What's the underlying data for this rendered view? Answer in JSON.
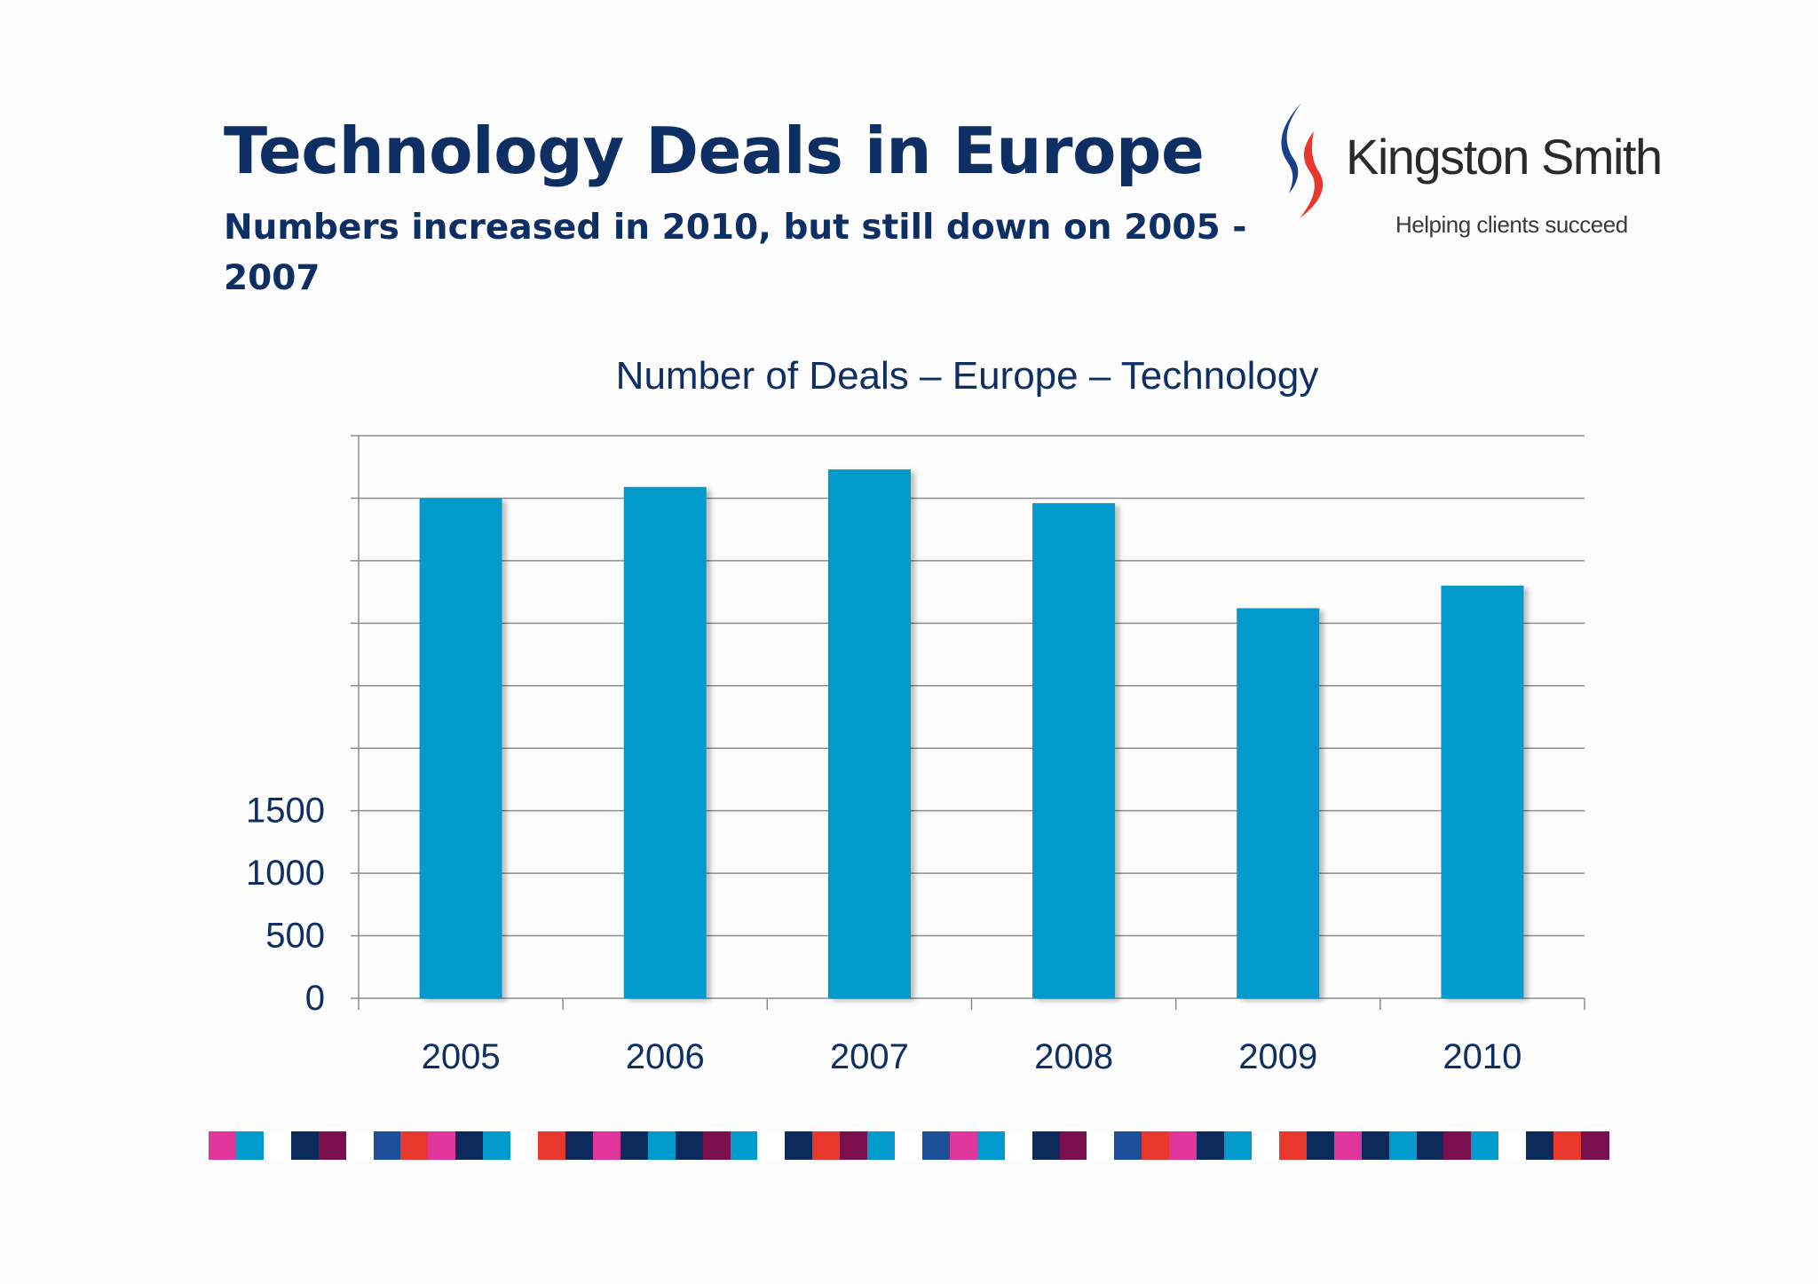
{
  "slide": {
    "title": "Technology Deals in Europe",
    "subtitle": "Numbers increased in 2010, but still down on 2005 - 2007"
  },
  "logo": {
    "name": "Kingston Smith",
    "tagline": "Helping clients succeed",
    "colors": [
      "#1b3f86",
      "#e8372c"
    ]
  },
  "chart_data": {
    "type": "bar",
    "title": "Number of Deals – Europe – Technology",
    "xlabel": "",
    "ylabel": "",
    "categories": [
      "2005",
      "2006",
      "2007",
      "2008",
      "2009",
      "2010"
    ],
    "values": [
      4000,
      4090,
      4230,
      3960,
      3120,
      3300
    ],
    "yticks": [
      0,
      500,
      1000,
      1500
    ],
    "ylim": [
      0,
      4500
    ],
    "grid": true,
    "legend": "none",
    "bar_color": "#009acd"
  },
  "footer": {
    "strip_colors": [
      "#e0359a",
      "#009acd",
      "#ffffff",
      "#0d2a5c",
      "#7a0f4e",
      "#ffffff",
      "#1b4f9a",
      "#e8372c",
      "#e0359a",
      "#0d2a5c",
      "#009acd",
      "#ffffff",
      "#e8372c",
      "#0d2a5c",
      "#e0359a",
      "#0d2a5c",
      "#009acd",
      "#0d2a5c",
      "#7a0f4e",
      "#009acd",
      "#ffffff",
      "#0d2a5c",
      "#e8372c",
      "#7a0f4e",
      "#009acd",
      "#ffffff",
      "#1b4f9a",
      "#e0359a",
      "#009acd",
      "#ffffff",
      "#0d2a5c",
      "#7a0f4e",
      "#ffffff",
      "#1b4f9a",
      "#e8372c",
      "#e0359a",
      "#0d2a5c",
      "#009acd",
      "#ffffff",
      "#e8372c",
      "#0d2a5c",
      "#e0359a",
      "#0d2a5c",
      "#009acd",
      "#0d2a5c",
      "#7a0f4e",
      "#009acd",
      "#ffffff",
      "#0d2a5c",
      "#e8372c",
      "#7a0f4e"
    ]
  }
}
